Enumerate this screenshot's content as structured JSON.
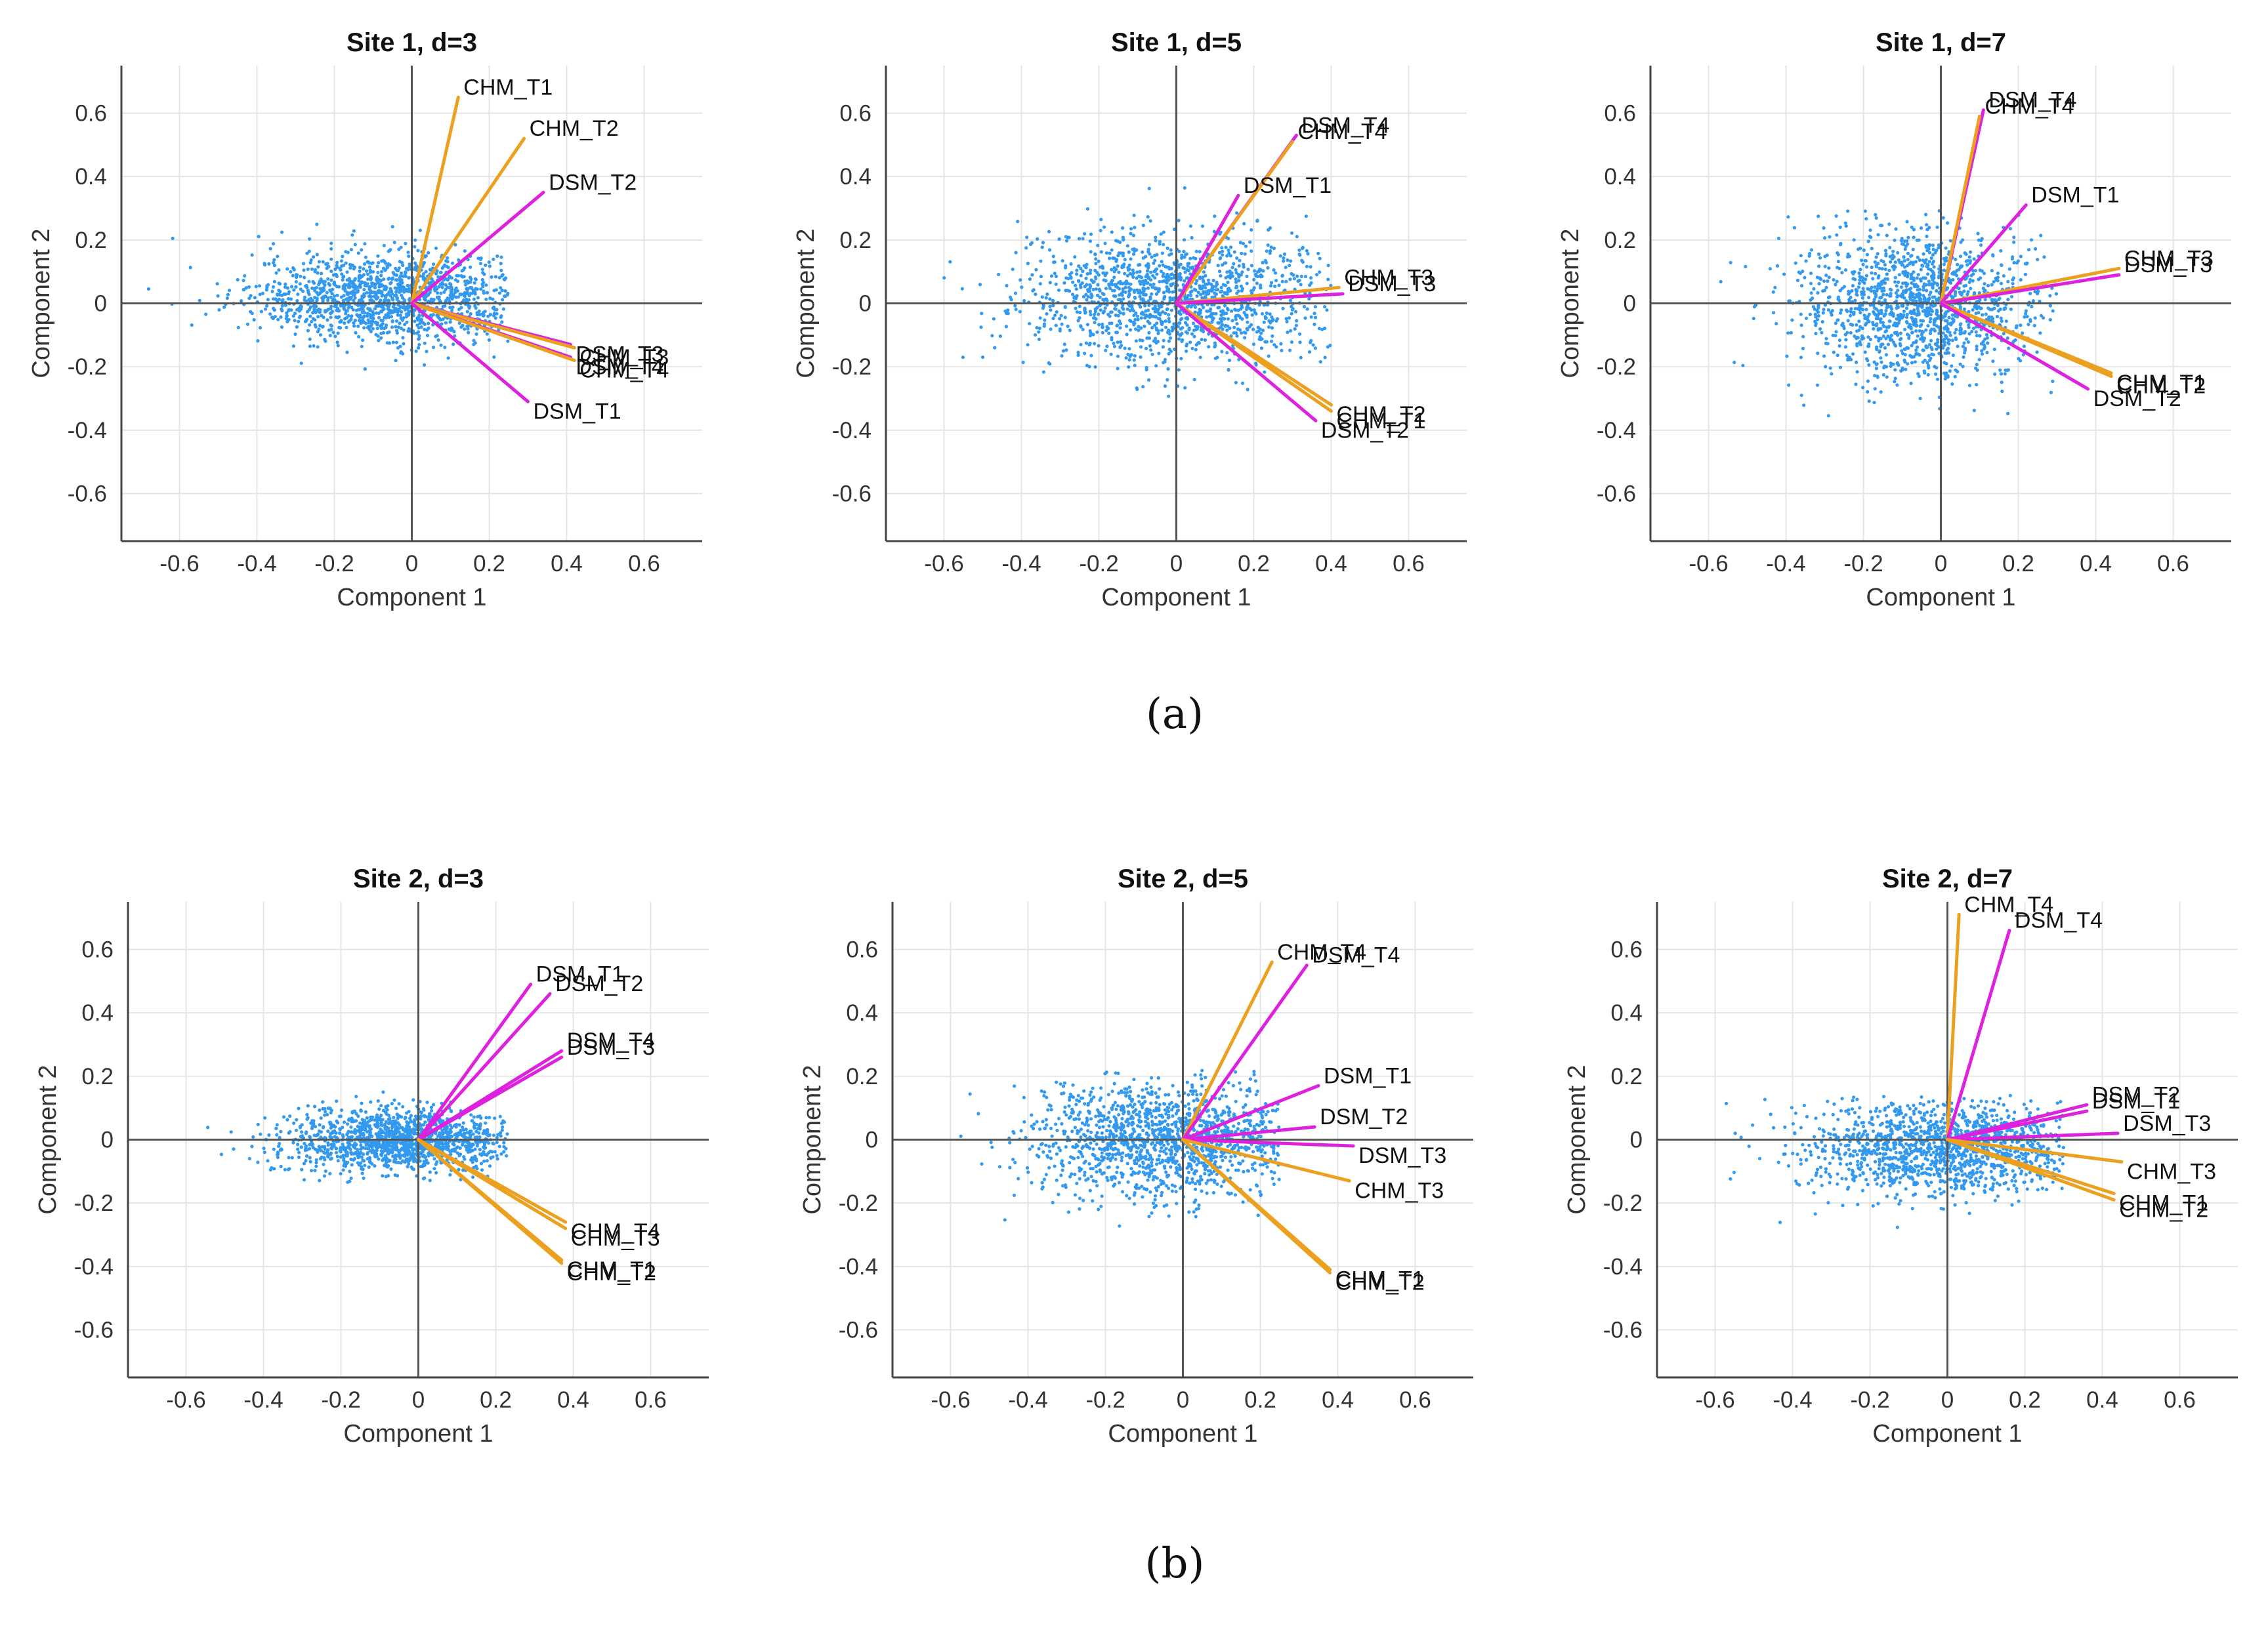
{
  "figure": {
    "panel_labels": [
      "(a)",
      "(b)"
    ],
    "colors": {
      "points": "#3399ee",
      "chm": "#eba020",
      "dsm": "#dd22dd"
    }
  },
  "chart_data": [
    {
      "type": "scatter",
      "subtype": "biplot",
      "title": "Site 1, d=3",
      "xlabel": "Component 1",
      "ylabel": "Component 2",
      "xlim": [
        -0.75,
        0.75
      ],
      "ylim": [
        -0.75,
        0.75
      ],
      "xticks": [
        "-0.6",
        "-0.4",
        "-0.2",
        "0",
        "0.2",
        "0.4",
        "0.6"
      ],
      "yticks": [
        "0.6",
        "0.4",
        "0.2",
        "0",
        "-0.2",
        "-0.4",
        "-0.6"
      ],
      "grid": true,
      "scores": {
        "x_range": [
          -0.68,
          0.25
        ],
        "y_range": [
          -0.25,
          0.3
        ],
        "center": [
          -0.05,
          0.02
        ],
        "spread": [
          0.18,
          0.07
        ]
      },
      "vectors": [
        {
          "label": "CHM_T1",
          "group": "CHM",
          "x": 0.12,
          "y": 0.65
        },
        {
          "label": "CHM_T2",
          "group": "CHM",
          "x": 0.29,
          "y": 0.52
        },
        {
          "label": "DSM_T2",
          "group": "DSM",
          "x": 0.34,
          "y": 0.35
        },
        {
          "label": "DSM_T3",
          "group": "DSM",
          "x": 0.41,
          "y": -0.13
        },
        {
          "label": "CHM_T3",
          "group": "CHM",
          "x": 0.42,
          "y": -0.14
        },
        {
          "label": "DSM_T4",
          "group": "DSM",
          "x": 0.41,
          "y": -0.17
        },
        {
          "label": "CHM_T4",
          "group": "CHM",
          "x": 0.42,
          "y": -0.18
        },
        {
          "label": "DSM_T1",
          "group": "DSM",
          "x": 0.3,
          "y": -0.31
        }
      ]
    },
    {
      "type": "scatter",
      "subtype": "biplot",
      "title": "Site 1, d=5",
      "xlabel": "Component 1",
      "ylabel": "Component 2",
      "xlim": [
        -0.75,
        0.75
      ],
      "ylim": [
        -0.75,
        0.75
      ],
      "xticks": [
        "-0.6",
        "-0.4",
        "-0.2",
        "0",
        "0.2",
        "0.4",
        "0.6"
      ],
      "yticks": [
        "0.6",
        "0.4",
        "0.2",
        "0",
        "-0.2",
        "-0.4",
        "-0.6"
      ],
      "grid": true,
      "scores": {
        "x_range": [
          -0.6,
          0.4
        ],
        "y_range": [
          -0.3,
          0.45
        ],
        "center": [
          0.0,
          0.02
        ],
        "spread": [
          0.2,
          0.1
        ]
      },
      "vectors": [
        {
          "label": "DSM_T4",
          "group": "DSM",
          "x": 0.31,
          "y": 0.53
        },
        {
          "label": "CHM_T4",
          "group": "CHM",
          "x": 0.3,
          "y": 0.51
        },
        {
          "label": "DSM_T1",
          "group": "DSM",
          "x": 0.16,
          "y": 0.34
        },
        {
          "label": "CHM_T3",
          "group": "CHM",
          "x": 0.42,
          "y": 0.05
        },
        {
          "label": "DSM_T3",
          "group": "DSM",
          "x": 0.43,
          "y": 0.03
        },
        {
          "label": "CHM_T2",
          "group": "CHM",
          "x": 0.4,
          "y": -0.32
        },
        {
          "label": "CHM_T1",
          "group": "CHM",
          "x": 0.4,
          "y": -0.34
        },
        {
          "label": "DSM_T2",
          "group": "DSM",
          "x": 0.36,
          "y": -0.37
        }
      ]
    },
    {
      "type": "scatter",
      "subtype": "biplot",
      "title": "Site 1, d=7",
      "xlabel": "Component 1",
      "ylabel": "Component 2",
      "xlim": [
        -0.75,
        0.75
      ],
      "ylim": [
        -0.75,
        0.75
      ],
      "xticks": [
        "-0.6",
        "-0.4",
        "-0.2",
        "0",
        "0.2",
        "0.4",
        "0.6"
      ],
      "yticks": [
        "0.6",
        "0.4",
        "0.2",
        "0",
        "-0.2",
        "-0.4",
        "-0.6"
      ],
      "grid": true,
      "scores": {
        "x_range": [
          -0.62,
          0.3
        ],
        "y_range": [
          -0.45,
          0.3
        ],
        "center": [
          -0.05,
          0.0
        ],
        "spread": [
          0.15,
          0.12
        ]
      },
      "vectors": [
        {
          "label": "DSM_T4",
          "group": "DSM",
          "x": 0.11,
          "y": 0.61
        },
        {
          "label": "CHM_T4",
          "group": "CHM",
          "x": 0.1,
          "y": 0.59
        },
        {
          "label": "DSM_T1",
          "group": "DSM",
          "x": 0.22,
          "y": 0.31
        },
        {
          "label": "CHM_T3",
          "group": "CHM",
          "x": 0.46,
          "y": 0.11
        },
        {
          "label": "DSM_T3",
          "group": "DSM",
          "x": 0.46,
          "y": 0.09
        },
        {
          "label": "CHM_T1",
          "group": "CHM",
          "x": 0.44,
          "y": -0.22
        },
        {
          "label": "CHM_T2",
          "group": "CHM",
          "x": 0.44,
          "y": -0.23
        },
        {
          "label": "DSM_T2",
          "group": "DSM",
          "x": 0.38,
          "y": -0.27
        }
      ]
    },
    {
      "type": "scatter",
      "subtype": "biplot",
      "title": "Site 2, d=3",
      "xlabel": "Component 1",
      "ylabel": "Component 2",
      "xlim": [
        -0.75,
        0.75
      ],
      "ylim": [
        -0.75,
        0.75
      ],
      "xticks": [
        "-0.6",
        "-0.4",
        "-0.2",
        "0",
        "0.2",
        "0.4",
        "0.6"
      ],
      "yticks": [
        "0.6",
        "0.4",
        "0.2",
        "0",
        "-0.2",
        "-0.4",
        "-0.6"
      ],
      "grid": true,
      "scores": {
        "x_range": [
          -0.55,
          0.23
        ],
        "y_range": [
          -0.25,
          0.18
        ],
        "center": [
          -0.05,
          0.0
        ],
        "spread": [
          0.15,
          0.05
        ]
      },
      "vectors": [
        {
          "label": "DSM_T1",
          "group": "DSM",
          "x": 0.29,
          "y": 0.49
        },
        {
          "label": "DSM_T2",
          "group": "DSM",
          "x": 0.34,
          "y": 0.46
        },
        {
          "label": "DSM_T4",
          "group": "DSM",
          "x": 0.37,
          "y": 0.28
        },
        {
          "label": "DSM_T3",
          "group": "DSM",
          "x": 0.37,
          "y": 0.26
        },
        {
          "label": "CHM_T4",
          "group": "CHM",
          "x": 0.38,
          "y": -0.26
        },
        {
          "label": "CHM_T3",
          "group": "CHM",
          "x": 0.38,
          "y": -0.28
        },
        {
          "label": "CHM_T1",
          "group": "CHM",
          "x": 0.37,
          "y": -0.38
        },
        {
          "label": "CHM_T2",
          "group": "CHM",
          "x": 0.37,
          "y": -0.39
        }
      ]
    },
    {
      "type": "scatter",
      "subtype": "biplot",
      "title": "Site 2, d=5",
      "xlabel": "Component 1",
      "ylabel": "Component 2",
      "xlim": [
        -0.75,
        0.75
      ],
      "ylim": [
        -0.75,
        0.75
      ],
      "xticks": [
        "-0.6",
        "-0.4",
        "-0.2",
        "0",
        "0.2",
        "0.4",
        "0.6"
      ],
      "yticks": [
        "0.6",
        "0.4",
        "0.2",
        "0",
        "-0.2",
        "-0.4",
        "-0.6"
      ],
      "grid": true,
      "scores": {
        "x_range": [
          -0.62,
          0.25
        ],
        "y_range": [
          -0.35,
          0.22
        ],
        "center": [
          -0.05,
          0.0
        ],
        "spread": [
          0.16,
          0.09
        ]
      },
      "vectors": [
        {
          "label": "CHM_T4",
          "group": "CHM",
          "x": 0.23,
          "y": 0.56
        },
        {
          "label": "DSM_T4",
          "group": "DSM",
          "x": 0.32,
          "y": 0.55
        },
        {
          "label": "DSM_T1",
          "group": "DSM",
          "x": 0.35,
          "y": 0.17
        },
        {
          "label": "DSM_T2",
          "group": "DSM",
          "x": 0.34,
          "y": 0.04
        },
        {
          "label": "DSM_T3",
          "group": "DSM",
          "x": 0.44,
          "y": -0.02
        },
        {
          "label": "CHM_T3",
          "group": "CHM",
          "x": 0.43,
          "y": -0.13
        },
        {
          "label": "CHM_T1",
          "group": "CHM",
          "x": 0.38,
          "y": -0.41
        },
        {
          "label": "CHM_T2",
          "group": "CHM",
          "x": 0.38,
          "y": -0.42
        }
      ]
    },
    {
      "type": "scatter",
      "subtype": "biplot",
      "title": "Site 2, d=7",
      "xlabel": "Component 1",
      "ylabel": "Component 2",
      "xlim": [
        -0.75,
        0.75
      ],
      "ylim": [
        -0.75,
        0.75
      ],
      "xticks": [
        "-0.6",
        "-0.4",
        "-0.2",
        "0",
        "0.2",
        "0.4",
        "0.6"
      ],
      "yticks": [
        "0.6",
        "0.4",
        "0.2",
        "0",
        "-0.2",
        "-0.4",
        "-0.6"
      ],
      "grid": true,
      "scores": {
        "x_range": [
          -0.72,
          0.3
        ],
        "y_range": [
          -0.42,
          0.14
        ],
        "center": [
          0.0,
          -0.02
        ],
        "spread": [
          0.18,
          0.08
        ]
      },
      "vectors": [
        {
          "label": "CHM_T4",
          "group": "CHM",
          "x": 0.03,
          "y": 0.71
        },
        {
          "label": "DSM_T4",
          "group": "DSM",
          "x": 0.16,
          "y": 0.66
        },
        {
          "label": "DSM_T2",
          "group": "DSM",
          "x": 0.36,
          "y": 0.11
        },
        {
          "label": "DSM_T1",
          "group": "DSM",
          "x": 0.36,
          "y": 0.09
        },
        {
          "label": "DSM_T3",
          "group": "DSM",
          "x": 0.44,
          "y": 0.02
        },
        {
          "label": "CHM_T3",
          "group": "CHM",
          "x": 0.45,
          "y": -0.07
        },
        {
          "label": "CHM_T1",
          "group": "CHM",
          "x": 0.43,
          "y": -0.17
        },
        {
          "label": "CHM_T2",
          "group": "CHM",
          "x": 0.43,
          "y": -0.19
        }
      ]
    }
  ]
}
